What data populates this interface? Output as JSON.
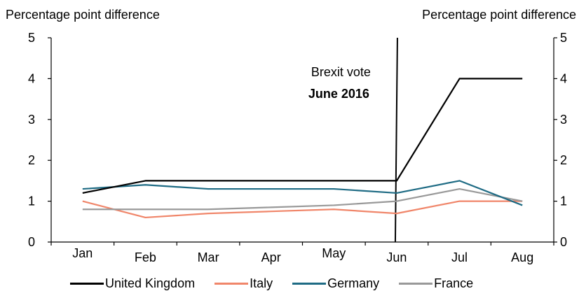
{
  "chart_data": {
    "type": "line",
    "ylabel_left": "Percentage point difference",
    "ylabel_right": "Percentage point difference",
    "categories": [
      "Jan",
      "Feb",
      "Mar",
      "Apr",
      "May",
      "Jun",
      "Jul",
      "Aug"
    ],
    "ylim": [
      0,
      5
    ],
    "yticks": [
      "0",
      "1",
      "2",
      "3",
      "4",
      "5"
    ],
    "grid": false,
    "legend_position": "bottom",
    "annotation": {
      "line1": "Brexit vote",
      "line2": "June 2016"
    },
    "series": [
      {
        "name": "United Kingdom",
        "color": "#000000",
        "values": [
          1.2,
          1.5,
          1.5,
          1.5,
          1.5,
          1.5,
          4.0,
          4.0
        ]
      },
      {
        "name": "Italy",
        "color": "#f0866a",
        "values": [
          1.0,
          0.6,
          0.7,
          0.75,
          0.8,
          0.7,
          1.0,
          1.0
        ]
      },
      {
        "name": "Germany",
        "color": "#1e6b84",
        "values": [
          1.3,
          1.4,
          1.3,
          1.3,
          1.3,
          1.2,
          1.5,
          0.9
        ]
      },
      {
        "name": "France",
        "color": "#999999",
        "values": [
          0.8,
          0.8,
          0.8,
          0.85,
          0.9,
          1.0,
          1.3,
          1.0
        ]
      }
    ]
  }
}
